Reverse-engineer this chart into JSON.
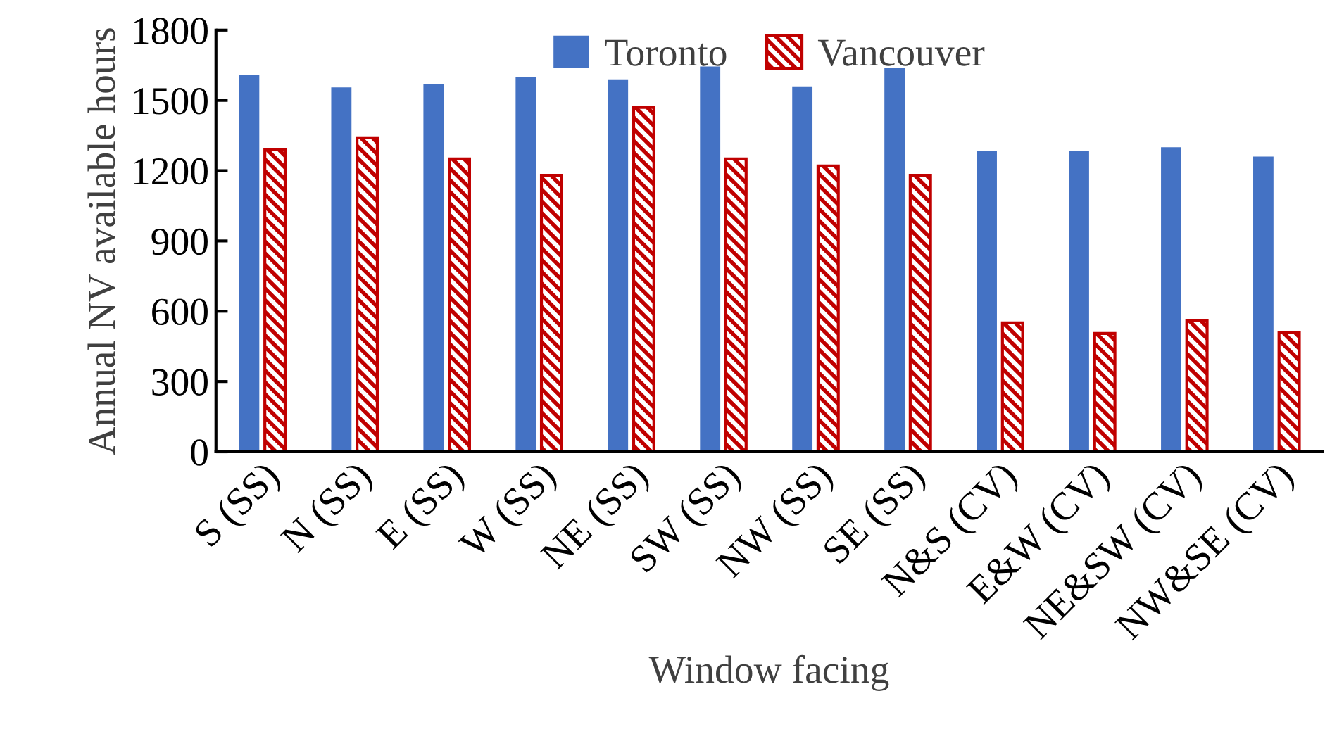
{
  "chart_data": {
    "type": "bar",
    "xlabel": "Window facing",
    "ylabel": "Annual NV available hours",
    "categories": [
      "S (SS)",
      "N (SS)",
      "E (SS)",
      "W (SS)",
      "NE (SS)",
      "SW (SS)",
      "NW (SS)",
      "SE (SS)",
      "N&S (CV)",
      "E&W (CV)",
      "NE&SW (CV)",
      "NW&SE (CV)"
    ],
    "series": [
      {
        "name": "Toronto",
        "color": "#4472c4",
        "values": [
          1610,
          1555,
          1570,
          1600,
          1590,
          1645,
          1560,
          1640,
          1285,
          1285,
          1300,
          1260
        ]
      },
      {
        "name": "Vancouver",
        "color": "#c00000",
        "values": [
          1290,
          1340,
          1250,
          1180,
          1470,
          1250,
          1220,
          1180,
          550,
          505,
          560,
          510
        ]
      }
    ],
    "ylim": [
      0,
      1800
    ],
    "yticks": [
      0,
      300,
      600,
      900,
      1200,
      1500,
      1800
    ],
    "grid": false,
    "legend": "top"
  }
}
